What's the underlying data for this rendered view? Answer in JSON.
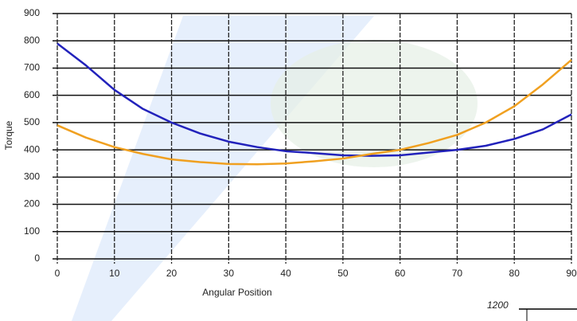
{
  "chart_data": {
    "type": "line",
    "y_label": "Torque",
    "x_label": "Angular Position",
    "x": [
      0,
      5,
      10,
      15,
      20,
      25,
      30,
      35,
      40,
      45,
      50,
      55,
      60,
      65,
      70,
      75,
      80,
      85,
      90
    ],
    "series": [
      {
        "color": "#2222bb",
        "values": [
          790,
          710,
          620,
          550,
          500,
          460,
          430,
          410,
          395,
          388,
          380,
          378,
          380,
          390,
          400,
          415,
          440,
          475,
          530
        ]
      },
      {
        "color": "#f0a020",
        "values": [
          490,
          445,
          410,
          385,
          365,
          355,
          348,
          347,
          350,
          358,
          368,
          385,
          400,
          425,
          455,
          500,
          560,
          640,
          730
        ]
      }
    ],
    "xlim": [
      0,
      90
    ],
    "xticks": [
      0,
      10,
      20,
      30,
      40,
      50,
      60,
      70,
      80,
      90
    ],
    "ylim": [
      0,
      900
    ],
    "yticks": [
      0,
      100,
      200,
      300,
      400,
      500,
      600,
      700,
      800,
      900
    ],
    "grid": true
  },
  "cropped_axis_label": "1200"
}
